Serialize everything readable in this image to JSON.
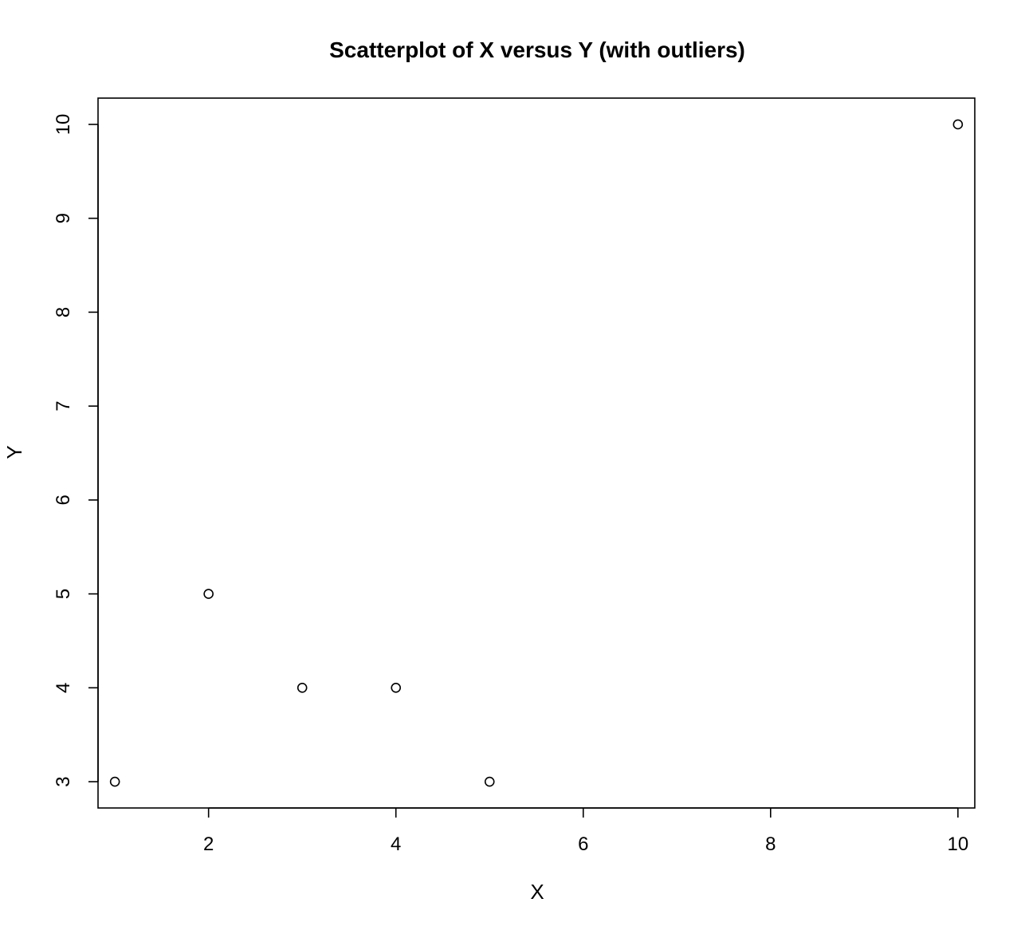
{
  "chart_data": {
    "type": "scatter",
    "title": "Scatterplot of X versus Y (with outliers)",
    "xlabel": "X",
    "ylabel": "Y",
    "xlim": [
      0.82,
      10.18
    ],
    "ylim": [
      2.72,
      10.28
    ],
    "x_ticks": [
      2,
      4,
      6,
      8,
      10
    ],
    "y_ticks": [
      3,
      4,
      5,
      6,
      7,
      8,
      9,
      10
    ],
    "x_tick_labels": [
      "2",
      "4",
      "6",
      "8",
      "10"
    ],
    "y_tick_labels": [
      "3",
      "4",
      "5",
      "6",
      "7",
      "8",
      "9",
      "10"
    ],
    "marker": "open-circle",
    "grid": false,
    "legend": "none",
    "points": [
      {
        "x": 1,
        "y": 3
      },
      {
        "x": 2,
        "y": 5
      },
      {
        "x": 3,
        "y": 4
      },
      {
        "x": 4,
        "y": 4
      },
      {
        "x": 5,
        "y": 3
      },
      {
        "x": 10,
        "y": 10
      }
    ],
    "colors": {
      "marker_stroke": "#000000",
      "axis": "#000000",
      "background": "#ffffff"
    }
  }
}
